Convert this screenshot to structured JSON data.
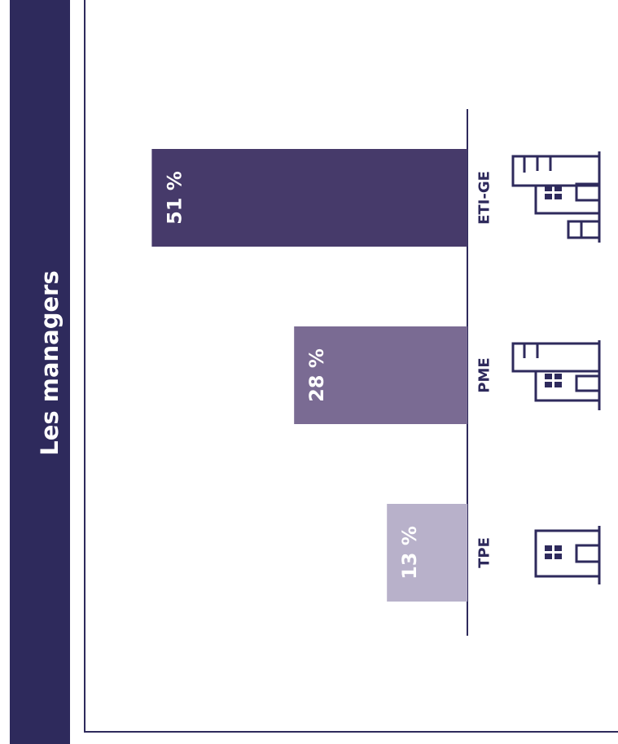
{
  "sidebar": {
    "title": "Les managers"
  },
  "colors": {
    "sidebar": "#2e2a5c",
    "axis": "#2e2a5c",
    "icon": "#2e2a5c",
    "label": "#ffffff"
  },
  "chart_data": {
    "type": "bar",
    "orientation": "horizontal-rotated",
    "categories": [
      "ETI-GE",
      "PME",
      "TPE"
    ],
    "values": [
      51,
      28,
      13
    ],
    "value_labels": [
      "51 %",
      "28 %",
      "13 %"
    ],
    "colors": [
      "#463a6a",
      "#7a6b93",
      "#b8b1ca"
    ],
    "icons": [
      "large-buildings-icon",
      "medium-buildings-icon",
      "small-building-icon"
    ],
    "unit": "%",
    "xlim": [
      0,
      100
    ],
    "grid": false,
    "legend": "none"
  }
}
